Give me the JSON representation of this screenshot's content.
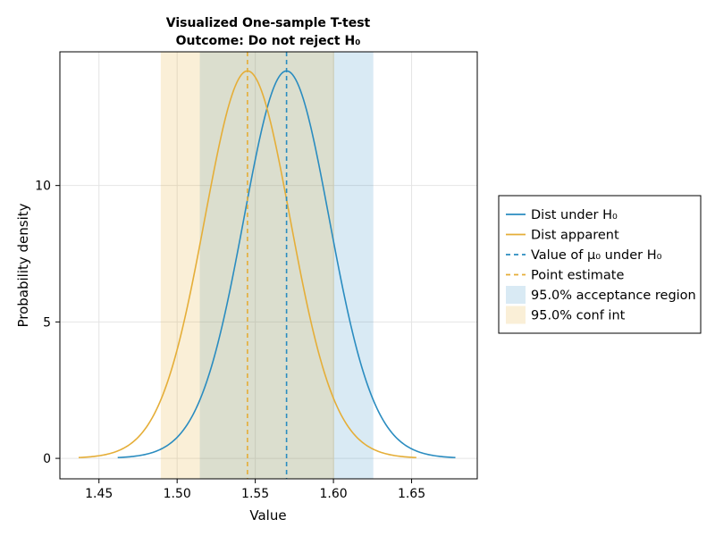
{
  "chart_data": {
    "type": "line",
    "title": "Visualized One-sample T-test",
    "subtitle": "Outcome: Do not reject H₀",
    "xlabel": "Value",
    "ylabel": "Probability density",
    "xlim": [
      1.425,
      1.692
    ],
    "ylim": [
      -0.75,
      14.9
    ],
    "x_ticks": [
      "1.45",
      "1.50",
      "1.55",
      "1.60",
      "1.65"
    ],
    "y_ticks": [
      "0",
      "5",
      "10"
    ],
    "grid": true,
    "legend_position": "right",
    "distributions": [
      {
        "name": "Dist under H₀",
        "kind": "t",
        "mean": 1.57,
        "peak": 14.2,
        "sd": 0.0281,
        "df": 30,
        "x_range": [
          1.462,
          1.678
        ],
        "color": "#2a8cc0"
      },
      {
        "name": "Dist apparent",
        "kind": "t",
        "mean": 1.545,
        "peak": 14.2,
        "sd": 0.0281,
        "df": 30,
        "x_range": [
          1.437,
          1.653
        ],
        "color": "#e5ae38"
      }
    ],
    "vlines": [
      {
        "name": "Value of μ₀ under H₀",
        "x": 1.57,
        "color": "#2a8cc0"
      },
      {
        "name": "Point estimate",
        "x": 1.545,
        "color": "#e5ae38"
      }
    ],
    "bands": [
      {
        "name": "95.0% acceptance region",
        "x": [
          1.5145,
          1.6255
        ],
        "color": "#2a8cc0",
        "opacity": 0.18
      },
      {
        "name": "95.0% conf int",
        "x": [
          1.4895,
          1.6005
        ],
        "color": "#e5ae38",
        "opacity": 0.2
      }
    ]
  }
}
